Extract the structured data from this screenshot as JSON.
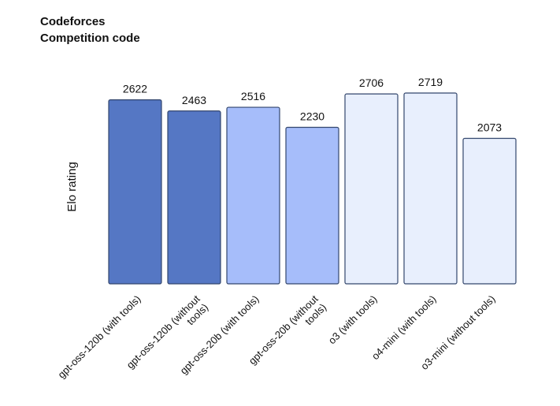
{
  "header": {
    "title": "Codeforces",
    "subtitle": "Competition code"
  },
  "chart_data": {
    "type": "bar",
    "title": "Codeforces",
    "subtitle": "Competition code",
    "xlabel": "",
    "ylabel": "Elo rating",
    "ylim": [
      0,
      2719
    ],
    "grid": false,
    "categories": [
      "gpt-oss-120b (with tools)",
      "gpt-oss-120b (without tools)",
      "gpt-oss-20b (with tools)",
      "gpt-oss-20b (without tools)",
      "o3 (with tools)",
      "o4-mini (with tools)",
      "o3-mini (without tools)"
    ],
    "category_lines": [
      [
        "gpt-oss-120b (with tools)"
      ],
      [
        "gpt-oss-120b (without",
        "tools)"
      ],
      [
        "gpt-oss-20b (with tools)"
      ],
      [
        "gpt-oss-20b (without",
        "tools)"
      ],
      [
        "o3 (with tools)"
      ],
      [
        "o4-mini (with tools)"
      ],
      [
        "o3-mini (without tools)"
      ]
    ],
    "values": [
      2622,
      2463,
      2516,
      2230,
      2706,
      2719,
      2073
    ],
    "value_labels": [
      "2622",
      "2463",
      "2516",
      "2230",
      "2706",
      "2719",
      "2073"
    ],
    "colors": [
      "#5577c4",
      "#5577c4",
      "#a6bdfa",
      "#a6bdfa",
      "#e8effd",
      "#e8effd",
      "#e8effd"
    ],
    "stroke_color": "#33466d"
  }
}
